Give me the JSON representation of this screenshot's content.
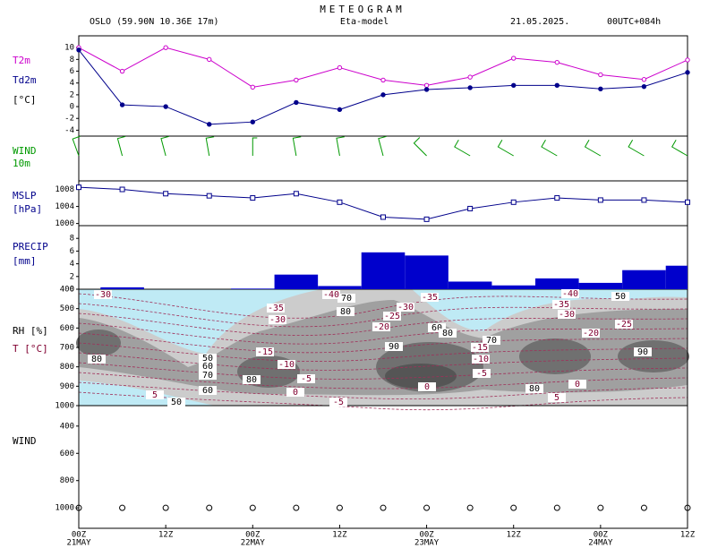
{
  "header": {
    "title": "METEOGRAM",
    "location": "OSLO (59.90N 10.36E  17m)",
    "model": "Eta-model",
    "date": "21.05.2025.",
    "run": "00UTC+084h"
  },
  "time_axis": {
    "xlim": [
      0,
      84
    ],
    "xticks": [
      {
        "value": 0,
        "label": "00Z",
        "date": "21MAY"
      },
      {
        "value": 12,
        "label": "12Z"
      },
      {
        "value": 24,
        "label": "00Z",
        "date": "22MAY"
      },
      {
        "value": 36,
        "label": "12Z"
      },
      {
        "value": 48,
        "label": "00Z",
        "date": "23MAY"
      },
      {
        "value": 60,
        "label": "12Z"
      },
      {
        "value": 72,
        "label": "00Z",
        "date": "24MAY"
      },
      {
        "value": 84,
        "label": "12Z"
      }
    ]
  },
  "chart_data": [
    {
      "type": "line",
      "y_label": "[°C]",
      "x": [
        0,
        6,
        12,
        18,
        24,
        30,
        36,
        42,
        48,
        54,
        60,
        66,
        72,
        78,
        84
      ],
      "series": [
        {
          "name": "T2m",
          "color": "#cc00cc",
          "values": [
            10,
            6,
            10,
            8,
            3.3,
            4.5,
            6.6,
            4.5,
            3.6,
            5,
            8.2,
            7.5,
            5.4,
            4.6,
            7.9
          ]
        },
        {
          "name": "Td2m",
          "color": "#00008b",
          "values": [
            9.6,
            0.3,
            0,
            -3,
            -2.6,
            0.7,
            -0.5,
            2,
            2.9,
            3.2,
            3.6,
            3.6,
            3,
            3.4,
            5.8
          ]
        }
      ],
      "ylim": [
        -5,
        12
      ],
      "yticks": [
        -4,
        -2,
        0,
        2,
        4,
        6,
        8,
        10
      ]
    },
    {
      "type": "barb",
      "title": "WIND",
      "subtitle": "10m",
      "color": "#009900",
      "x": [
        0,
        6,
        12,
        18,
        24,
        30,
        36,
        42,
        48,
        54,
        60,
        66,
        72,
        78,
        84
      ],
      "direction": [
        340,
        345,
        345,
        350,
        0,
        350,
        350,
        345,
        315,
        300,
        300,
        300,
        300,
        300,
        300
      ],
      "speed": [
        10,
        10,
        10,
        10,
        5,
        10,
        10,
        10,
        10,
        10,
        10,
        10,
        10,
        10,
        10
      ]
    },
    {
      "type": "line",
      "y_label": "[hPa]",
      "x": [
        0,
        6,
        12,
        18,
        24,
        30,
        36,
        42,
        48,
        54,
        60,
        66,
        72,
        78,
        84
      ],
      "series": [
        {
          "name": "MSLP",
          "color": "#00008b",
          "values": [
            1008.5,
            1008,
            1007,
            1006.5,
            1006,
            1007,
            1005,
            1001.5,
            1001,
            1003.5,
            1005,
            1006,
            1005.5,
            1005.5,
            1005
          ]
        }
      ],
      "ylim": [
        999.5,
        1010
      ],
      "yticks": [
        1000,
        1004,
        1008
      ]
    },
    {
      "type": "histogram",
      "title": "PRECIP",
      "y_label": "[mm]",
      "color": "#0000cc",
      "bins": [
        3,
        9,
        15,
        21,
        27,
        33,
        39,
        45,
        51,
        57,
        63,
        69,
        75,
        81,
        87
      ],
      "values": [
        0.3,
        0,
        0,
        0.1,
        2.3,
        0.5,
        5.8,
        5.3,
        1.2,
        0.6,
        1.7,
        1,
        3,
        3.7
      ],
      "ylim": [
        0,
        10
      ],
      "yticks": [
        0,
        2,
        4,
        6,
        8
      ]
    },
    {
      "type": "contour",
      "title": "RH [%]",
      "subtitle": "T [°C]",
      "ylim": [
        1000,
        400
      ],
      "yticks": [
        400,
        500,
        600,
        700,
        800,
        900,
        1000
      ],
      "t_labels": [
        -30,
        -40,
        -35,
        -40,
        -35,
        -30,
        -35,
        -25,
        -30,
        -30,
        -20,
        -25,
        -20,
        -15,
        -15,
        -10,
        -10,
        -5,
        -5,
        0,
        0,
        0,
        5,
        5,
        -5
      ],
      "rh_labels": [
        70,
        50,
        80,
        60,
        80,
        70,
        90,
        80,
        50,
        60,
        70,
        80,
        90,
        80,
        60,
        50
      ]
    },
    {
      "type": "barb_profile",
      "title": "WIND",
      "ylim": [
        1150,
        250
      ],
      "yticks": [
        400,
        600,
        800,
        1000
      ]
    }
  ]
}
